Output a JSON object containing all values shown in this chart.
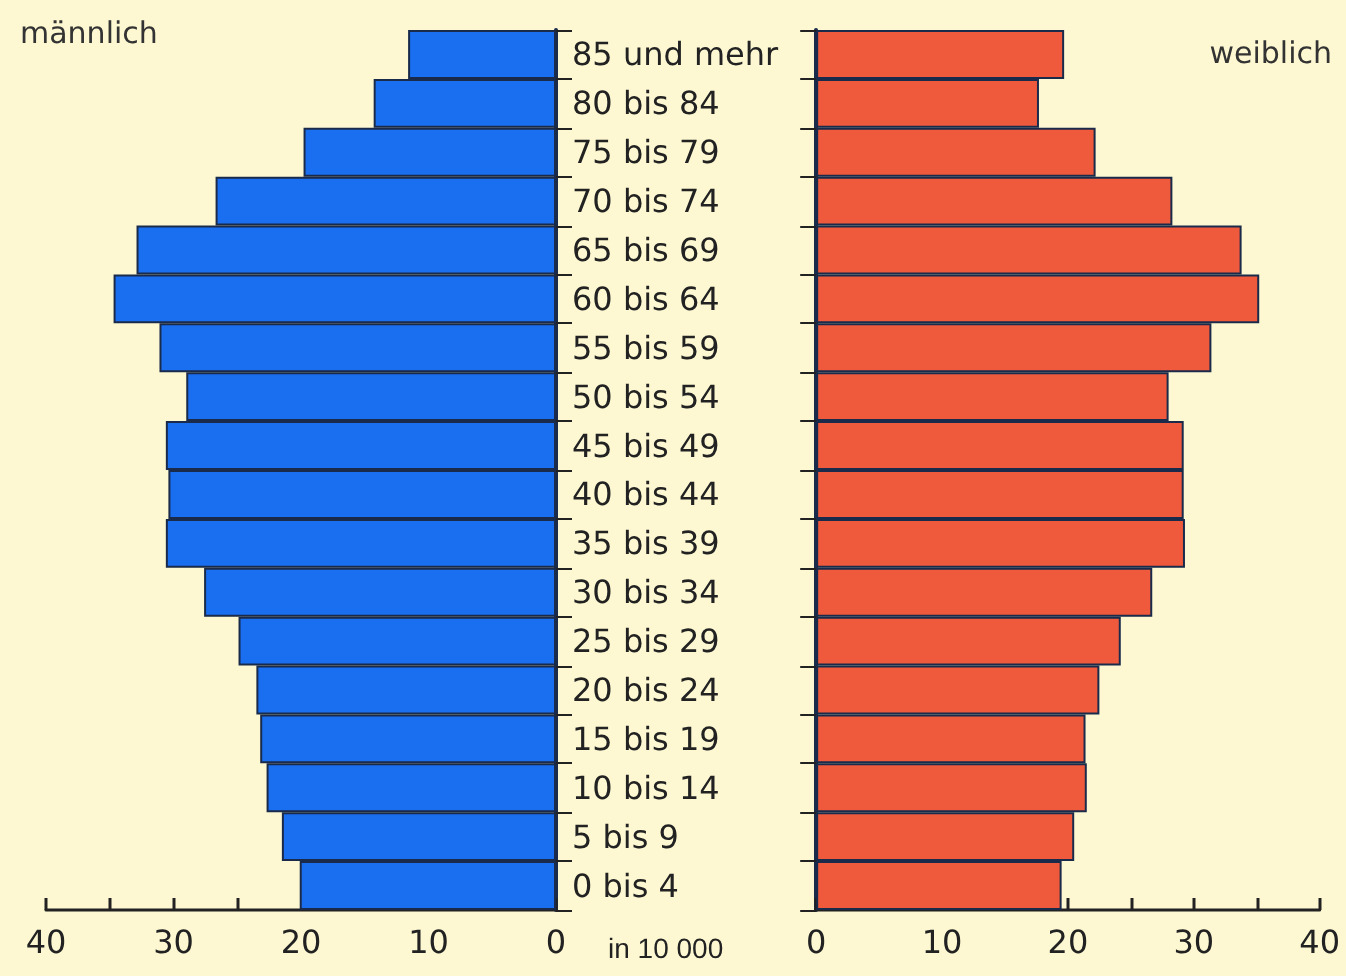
{
  "chart_data": [
    {
      "type": "bar",
      "orientation": "horizontal",
      "title": "männlich",
      "xlabel": "in 10 000",
      "categories": [
        "85 und mehr",
        "80 bis 84",
        "75 bis 79",
        "70 bis 74",
        "65 bis 69",
        "60 bis 64",
        "55 bis 59",
        "50 bis 54",
        "45 bis 49",
        "40 bis 44",
        "35 bis 39",
        "30 bis 34",
        "25 bis 29",
        "20 bis 24",
        "15 bis 19",
        "10 bis 14",
        "5 bis 9",
        "0 bis 4"
      ],
      "series": [
        {
          "color": "#1a6ef0",
          "values": [
            11.6,
            14.3,
            19.8,
            26.7,
            32.9,
            34.7,
            31.1,
            29,
            30.6,
            30.4,
            30.6,
            27.6,
            24.9,
            23.5,
            23.2,
            22.7,
            21.5,
            20.1
          ]
        }
      ],
      "xlim": [
        40,
        0
      ],
      "xticks": [
        40,
        {
          "value": 35,
          "label": null
        },
        30,
        {
          "value": 25,
          "label": null
        },
        20,
        {
          "value": 15,
          "label": null
        },
        10,
        {
          "value": 5,
          "label": null
        },
        0
      ]
    },
    {
      "type": "bar",
      "orientation": "horizontal",
      "title": "weiblich",
      "tick_labels": "x",
      "series": [
        {
          "color": "#f05a3c",
          "values": [
            19.7,
            17.7,
            22.2,
            28.3,
            33.8,
            35.2,
            31.4,
            28,
            29.2,
            29.2,
            29.3,
            26.7,
            24.2,
            22.5,
            21.4,
            21.5,
            20.5,
            19.5
          ]
        }
      ],
      "xlim": [
        0,
        40
      ],
      "xticks": [
        0,
        {
          "value": 5,
          "label": null
        },
        10,
        {
          "value": 15,
          "label": null
        },
        20,
        {
          "value": 25,
          "label": null
        },
        30,
        {
          "value": 35,
          "label": null
        },
        40
      ]
    }
  ]
}
